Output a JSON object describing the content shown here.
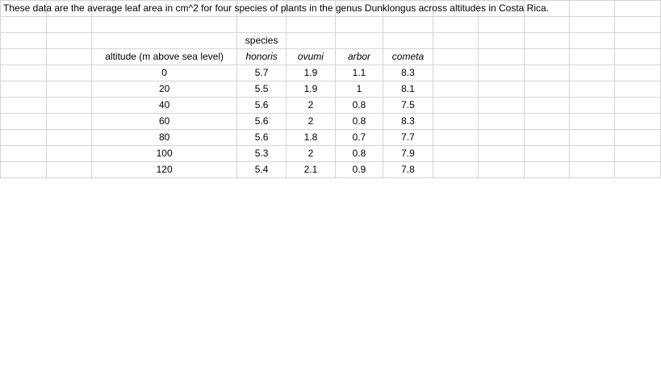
{
  "title": "These data are the average leaf area in cm^2 for four species of plants in the genus Dunklongus across altitudes in Costa Rica.",
  "group_header": "species",
  "altitude_header": "altitude (m above sea level)",
  "species": [
    "honoris",
    "ovumi",
    "arbor",
    "cometa"
  ],
  "rows": [
    {
      "altitude": "0",
      "values": [
        "5.7",
        "1.9",
        "1.1",
        "8.3"
      ]
    },
    {
      "altitude": "20",
      "values": [
        "5.5",
        "1.9",
        "1",
        "8.1"
      ]
    },
    {
      "altitude": "40",
      "values": [
        "5.6",
        "2",
        "0.8",
        "7.5"
      ]
    },
    {
      "altitude": "60",
      "values": [
        "5.6",
        "2",
        "0.8",
        "8.3"
      ]
    },
    {
      "altitude": "80",
      "values": [
        "5.6",
        "1.8",
        "0.7",
        "7.7"
      ]
    },
    {
      "altitude": "100",
      "values": [
        "5.3",
        "2",
        "0.8",
        "7.9"
      ]
    },
    {
      "altitude": "120",
      "values": [
        "5.4",
        "2.1",
        "0.9",
        "7.8"
      ]
    }
  ]
}
